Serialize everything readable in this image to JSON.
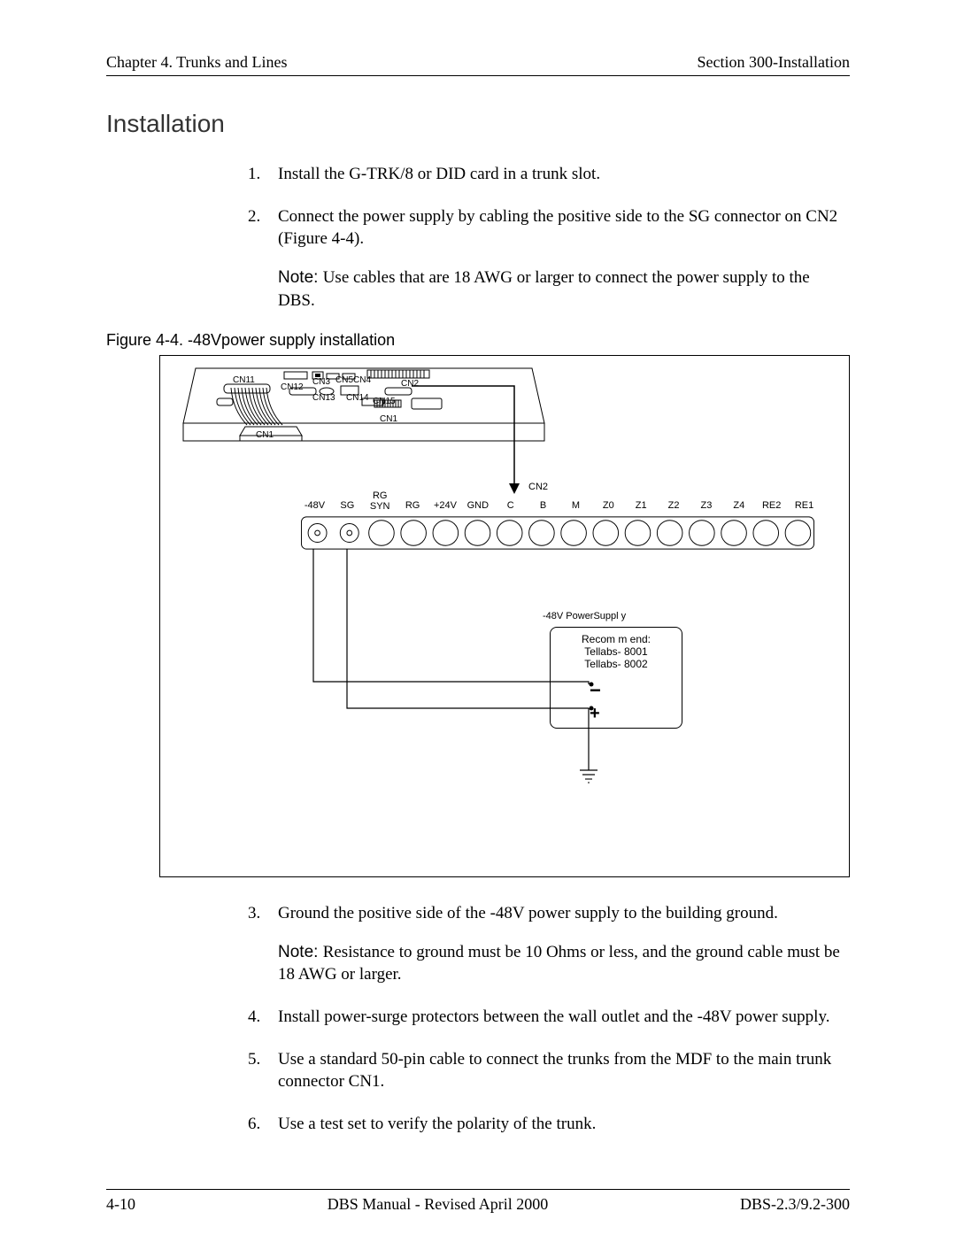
{
  "header": {
    "left": "Chapter 4. Trunks and Lines",
    "right": "Section 300-Installation"
  },
  "section_title": "Installation",
  "steps_before": [
    {
      "n": "1.",
      "text": "Install the G-TRK/8 or DID card in a trunk slot."
    },
    {
      "n": "2.",
      "text": "Connect the power supply by cabling the positive side to the SG connector on CN2 (Figure 4-4).",
      "note": "Use cables that are 18 AWG or larger to connect the power supply to the DBS."
    }
  ],
  "figure": {
    "caption": "Figure 4-4. -48Vpower supply installation",
    "board_labels": [
      "CN11",
      "CN12",
      "CN3",
      "CN5",
      "CN4",
      "CN2",
      "CN13",
      "CN14",
      "CN15",
      "CN1"
    ],
    "cn2_label": "CN2",
    "pin_labels_top": [
      "-48V",
      "SG",
      "RG\nSYN",
      "RG",
      "+24V",
      "GND",
      "C",
      "B",
      "M",
      "Z0",
      "Z1",
      "Z2",
      "Z3",
      "Z4",
      "RE2",
      "RE1"
    ],
    "terminal_count": 16,
    "ps_title": "-48V PowerSuppl y",
    "ps_rec": "Recom m end:",
    "ps_line1": "Tellabs- 8001",
    "ps_line2": "Tellabs- 8002",
    "minus": "−",
    "plus": "+"
  },
  "steps_after": [
    {
      "n": "3.",
      "text": "Ground the positive side of the -48V power supply to the building ground.",
      "note": "Resistance to ground must be 10 Ohms or less, and the ground cable must be 18 AWG or larger."
    },
    {
      "n": "4.",
      "text": "Install power-surge protectors between the wall outlet and the -48V power supply."
    },
    {
      "n": "5.",
      "text": "Use a standard 50-pin cable to connect the trunks from the MDF to the main trunk connector CN1."
    },
    {
      "n": "6.",
      "text": "Use a test set to verify the polarity of the trunk."
    }
  ],
  "note_label": "Note:",
  "footer": {
    "left": "4-10",
    "center": "DBS Manual - Revised April 2000",
    "right": "DBS-2.3/9.2-300"
  },
  "colors": {
    "text": "#000000",
    "title": "#333333",
    "line": "#000000",
    "bg": "#ffffff"
  }
}
